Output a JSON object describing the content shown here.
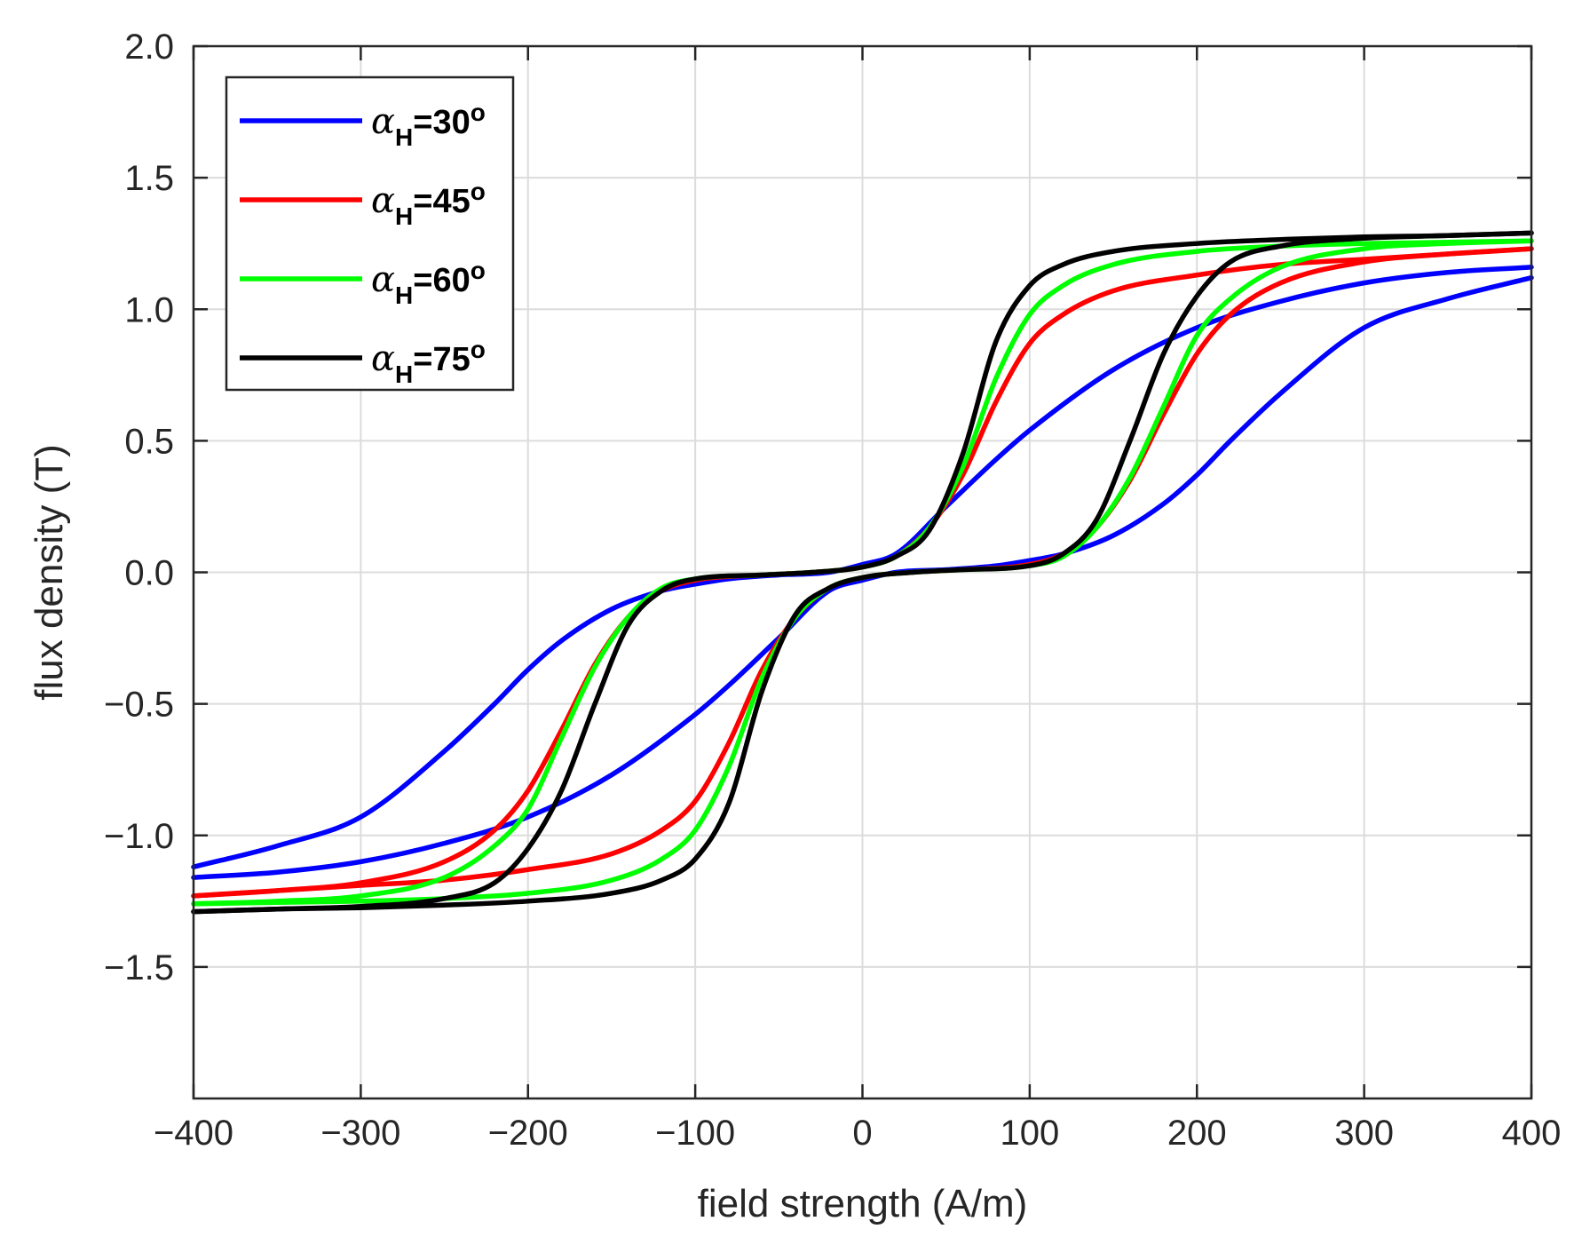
{
  "chart_data": {
    "type": "line",
    "title": "",
    "xlabel": "field strength (A/m)",
    "ylabel": "flux density (T)",
    "xlim": [
      -400,
      400
    ],
    "ylim": [
      -2.0,
      2.0
    ],
    "xticks": [
      -400,
      -300,
      -200,
      -100,
      0,
      100,
      200,
      300,
      400
    ],
    "xtick_labels": [
      "−400",
      "−300",
      "−200",
      "−100",
      "0",
      "100",
      "200",
      "300",
      "400"
    ],
    "yticks": [
      2.0,
      1.5,
      1.0,
      0.5,
      0.0,
      -0.5,
      -1.0,
      -1.5
    ],
    "ytick_labels": [
      "2.0",
      "1.5",
      "1.0",
      "0.5",
      "0.0",
      "−0.5",
      "−1.0",
      "−1.5"
    ],
    "grid": true,
    "legend_position": "top-left",
    "series": [
      {
        "name": "αH=30°",
        "legend_symbol": "α",
        "legend_sub": "H",
        "legend_value": "=30",
        "legend_deg": "o",
        "color": "#0000ff",
        "ascending": [
          [
            -400,
            -1.12
          ],
          [
            -350,
            -1.04
          ],
          [
            -300,
            -0.93
          ],
          [
            -250,
            -0.68
          ],
          [
            -220,
            -0.5
          ],
          [
            -200,
            -0.37
          ],
          [
            -180,
            -0.26
          ],
          [
            -150,
            -0.14
          ],
          [
            -120,
            -0.07
          ],
          [
            -100,
            -0.045
          ],
          [
            -80,
            -0.025
          ],
          [
            -50,
            -0.01
          ],
          [
            -20,
            0.0
          ],
          [
            0,
            0.03
          ],
          [
            20,
            0.07
          ],
          [
            50,
            0.25
          ],
          [
            80,
            0.43
          ],
          [
            100,
            0.54
          ],
          [
            150,
            0.77
          ],
          [
            200,
            0.93
          ],
          [
            250,
            1.03
          ],
          [
            300,
            1.1
          ],
          [
            350,
            1.14
          ],
          [
            400,
            1.16
          ]
        ],
        "descending": [
          [
            400,
            1.12
          ],
          [
            350,
            1.04
          ],
          [
            300,
            0.93
          ],
          [
            250,
            0.68
          ],
          [
            220,
            0.5
          ],
          [
            200,
            0.37
          ],
          [
            180,
            0.26
          ],
          [
            150,
            0.14
          ],
          [
            120,
            0.07
          ],
          [
            100,
            0.045
          ],
          [
            80,
            0.025
          ],
          [
            50,
            0.01
          ],
          [
            20,
            0.0
          ],
          [
            0,
            -0.03
          ],
          [
            -20,
            -0.07
          ],
          [
            -50,
            -0.25
          ],
          [
            -80,
            -0.43
          ],
          [
            -100,
            -0.54
          ],
          [
            -150,
            -0.77
          ],
          [
            -200,
            -0.93
          ],
          [
            -250,
            -1.03
          ],
          [
            -300,
            -1.1
          ],
          [
            -350,
            -1.14
          ],
          [
            -400,
            -1.16
          ]
        ]
      },
      {
        "name": "αH=45°",
        "legend_symbol": "α",
        "legend_sub": "H",
        "legend_value": "=45",
        "legend_deg": "o",
        "color": "#ff0000",
        "ascending": [
          [
            -400,
            -1.23
          ],
          [
            -350,
            -1.21
          ],
          [
            -300,
            -1.18
          ],
          [
            -250,
            -1.1
          ],
          [
            -220,
            -0.98
          ],
          [
            -200,
            -0.83
          ],
          [
            -180,
            -0.6
          ],
          [
            -160,
            -0.35
          ],
          [
            -140,
            -0.17
          ],
          [
            -120,
            -0.07
          ],
          [
            -100,
            -0.03
          ],
          [
            -60,
            -0.01
          ],
          [
            -30,
            0.0
          ],
          [
            0,
            0.02
          ],
          [
            20,
            0.06
          ],
          [
            40,
            0.17
          ],
          [
            60,
            0.37
          ],
          [
            80,
            0.65
          ],
          [
            100,
            0.87
          ],
          [
            120,
            0.98
          ],
          [
            150,
            1.07
          ],
          [
            200,
            1.13
          ],
          [
            250,
            1.17
          ],
          [
            300,
            1.19
          ],
          [
            350,
            1.21
          ],
          [
            400,
            1.23
          ]
        ],
        "descending": [
          [
            400,
            1.23
          ],
          [
            350,
            1.21
          ],
          [
            300,
            1.18
          ],
          [
            250,
            1.1
          ],
          [
            220,
            0.98
          ],
          [
            200,
            0.83
          ],
          [
            180,
            0.6
          ],
          [
            160,
            0.35
          ],
          [
            140,
            0.17
          ],
          [
            120,
            0.07
          ],
          [
            100,
            0.03
          ],
          [
            60,
            0.01
          ],
          [
            30,
            0.0
          ],
          [
            0,
            -0.02
          ],
          [
            -20,
            -0.06
          ],
          [
            -40,
            -0.17
          ],
          [
            -60,
            -0.37
          ],
          [
            -80,
            -0.65
          ],
          [
            -100,
            -0.87
          ],
          [
            -120,
            -0.98
          ],
          [
            -150,
            -1.07
          ],
          [
            -200,
            -1.13
          ],
          [
            -250,
            -1.17
          ],
          [
            -300,
            -1.19
          ],
          [
            -350,
            -1.21
          ],
          [
            -400,
            -1.23
          ]
        ]
      },
      {
        "name": "αH=60°",
        "legend_symbol": "α",
        "legend_sub": "H",
        "legend_value": "=60",
        "legend_deg": "o",
        "color": "#00ff00",
        "ascending": [
          [
            -400,
            -1.26
          ],
          [
            -350,
            -1.25
          ],
          [
            -300,
            -1.23
          ],
          [
            -250,
            -1.16
          ],
          [
            -220,
            -1.04
          ],
          [
            -200,
            -0.9
          ],
          [
            -180,
            -0.63
          ],
          [
            -160,
            -0.36
          ],
          [
            -140,
            -0.17
          ],
          [
            -120,
            -0.06
          ],
          [
            -100,
            -0.025
          ],
          [
            -60,
            -0.01
          ],
          [
            -30,
            0.0
          ],
          [
            0,
            0.02
          ],
          [
            20,
            0.06
          ],
          [
            40,
            0.17
          ],
          [
            60,
            0.4
          ],
          [
            80,
            0.74
          ],
          [
            100,
            0.98
          ],
          [
            120,
            1.09
          ],
          [
            150,
            1.17
          ],
          [
            200,
            1.22
          ],
          [
            250,
            1.24
          ],
          [
            300,
            1.25
          ],
          [
            350,
            1.255
          ],
          [
            400,
            1.26
          ]
        ],
        "descending": [
          [
            400,
            1.26
          ],
          [
            350,
            1.25
          ],
          [
            300,
            1.23
          ],
          [
            250,
            1.16
          ],
          [
            220,
            1.04
          ],
          [
            200,
            0.9
          ],
          [
            180,
            0.63
          ],
          [
            160,
            0.36
          ],
          [
            140,
            0.17
          ],
          [
            120,
            0.06
          ],
          [
            100,
            0.025
          ],
          [
            60,
            0.01
          ],
          [
            30,
            0.0
          ],
          [
            0,
            -0.02
          ],
          [
            -20,
            -0.06
          ],
          [
            -40,
            -0.17
          ],
          [
            -60,
            -0.4
          ],
          [
            -80,
            -0.74
          ],
          [
            -100,
            -0.98
          ],
          [
            -120,
            -1.09
          ],
          [
            -150,
            -1.17
          ],
          [
            -200,
            -1.22
          ],
          [
            -250,
            -1.24
          ],
          [
            -300,
            -1.25
          ],
          [
            -350,
            -1.255
          ],
          [
            -400,
            -1.26
          ]
        ]
      },
      {
        "name": "αH=75°",
        "legend_symbol": "α",
        "legend_sub": "H",
        "legend_value": "=75",
        "legend_deg": "o",
        "color": "#000000",
        "ascending": [
          [
            -400,
            -1.29
          ],
          [
            -350,
            -1.28
          ],
          [
            -300,
            -1.27
          ],
          [
            -250,
            -1.24
          ],
          [
            -220,
            -1.18
          ],
          [
            -200,
            -1.05
          ],
          [
            -180,
            -0.83
          ],
          [
            -160,
            -0.5
          ],
          [
            -140,
            -0.2
          ],
          [
            -120,
            -0.07
          ],
          [
            -100,
            -0.025
          ],
          [
            -60,
            -0.01
          ],
          [
            -30,
            0.0
          ],
          [
            0,
            0.02
          ],
          [
            20,
            0.06
          ],
          [
            40,
            0.16
          ],
          [
            60,
            0.45
          ],
          [
            80,
            0.88
          ],
          [
            100,
            1.09
          ],
          [
            120,
            1.17
          ],
          [
            150,
            1.22
          ],
          [
            200,
            1.25
          ],
          [
            250,
            1.265
          ],
          [
            300,
            1.275
          ],
          [
            350,
            1.28
          ],
          [
            400,
            1.29
          ]
        ],
        "descending": [
          [
            400,
            1.29
          ],
          [
            350,
            1.28
          ],
          [
            300,
            1.27
          ],
          [
            250,
            1.24
          ],
          [
            220,
            1.18
          ],
          [
            200,
            1.05
          ],
          [
            180,
            0.83
          ],
          [
            160,
            0.5
          ],
          [
            140,
            0.2
          ],
          [
            120,
            0.07
          ],
          [
            100,
            0.025
          ],
          [
            60,
            0.01
          ],
          [
            30,
            0.0
          ],
          [
            0,
            -0.02
          ],
          [
            -20,
            -0.06
          ],
          [
            -40,
            -0.16
          ],
          [
            -60,
            -0.45
          ],
          [
            -80,
            -0.88
          ],
          [
            -100,
            -1.09
          ],
          [
            -120,
            -1.17
          ],
          [
            -150,
            -1.22
          ],
          [
            -200,
            -1.25
          ],
          [
            -250,
            -1.265
          ],
          [
            -300,
            -1.275
          ],
          [
            -350,
            -1.28
          ],
          [
            -400,
            -1.29
          ]
        ]
      }
    ]
  }
}
